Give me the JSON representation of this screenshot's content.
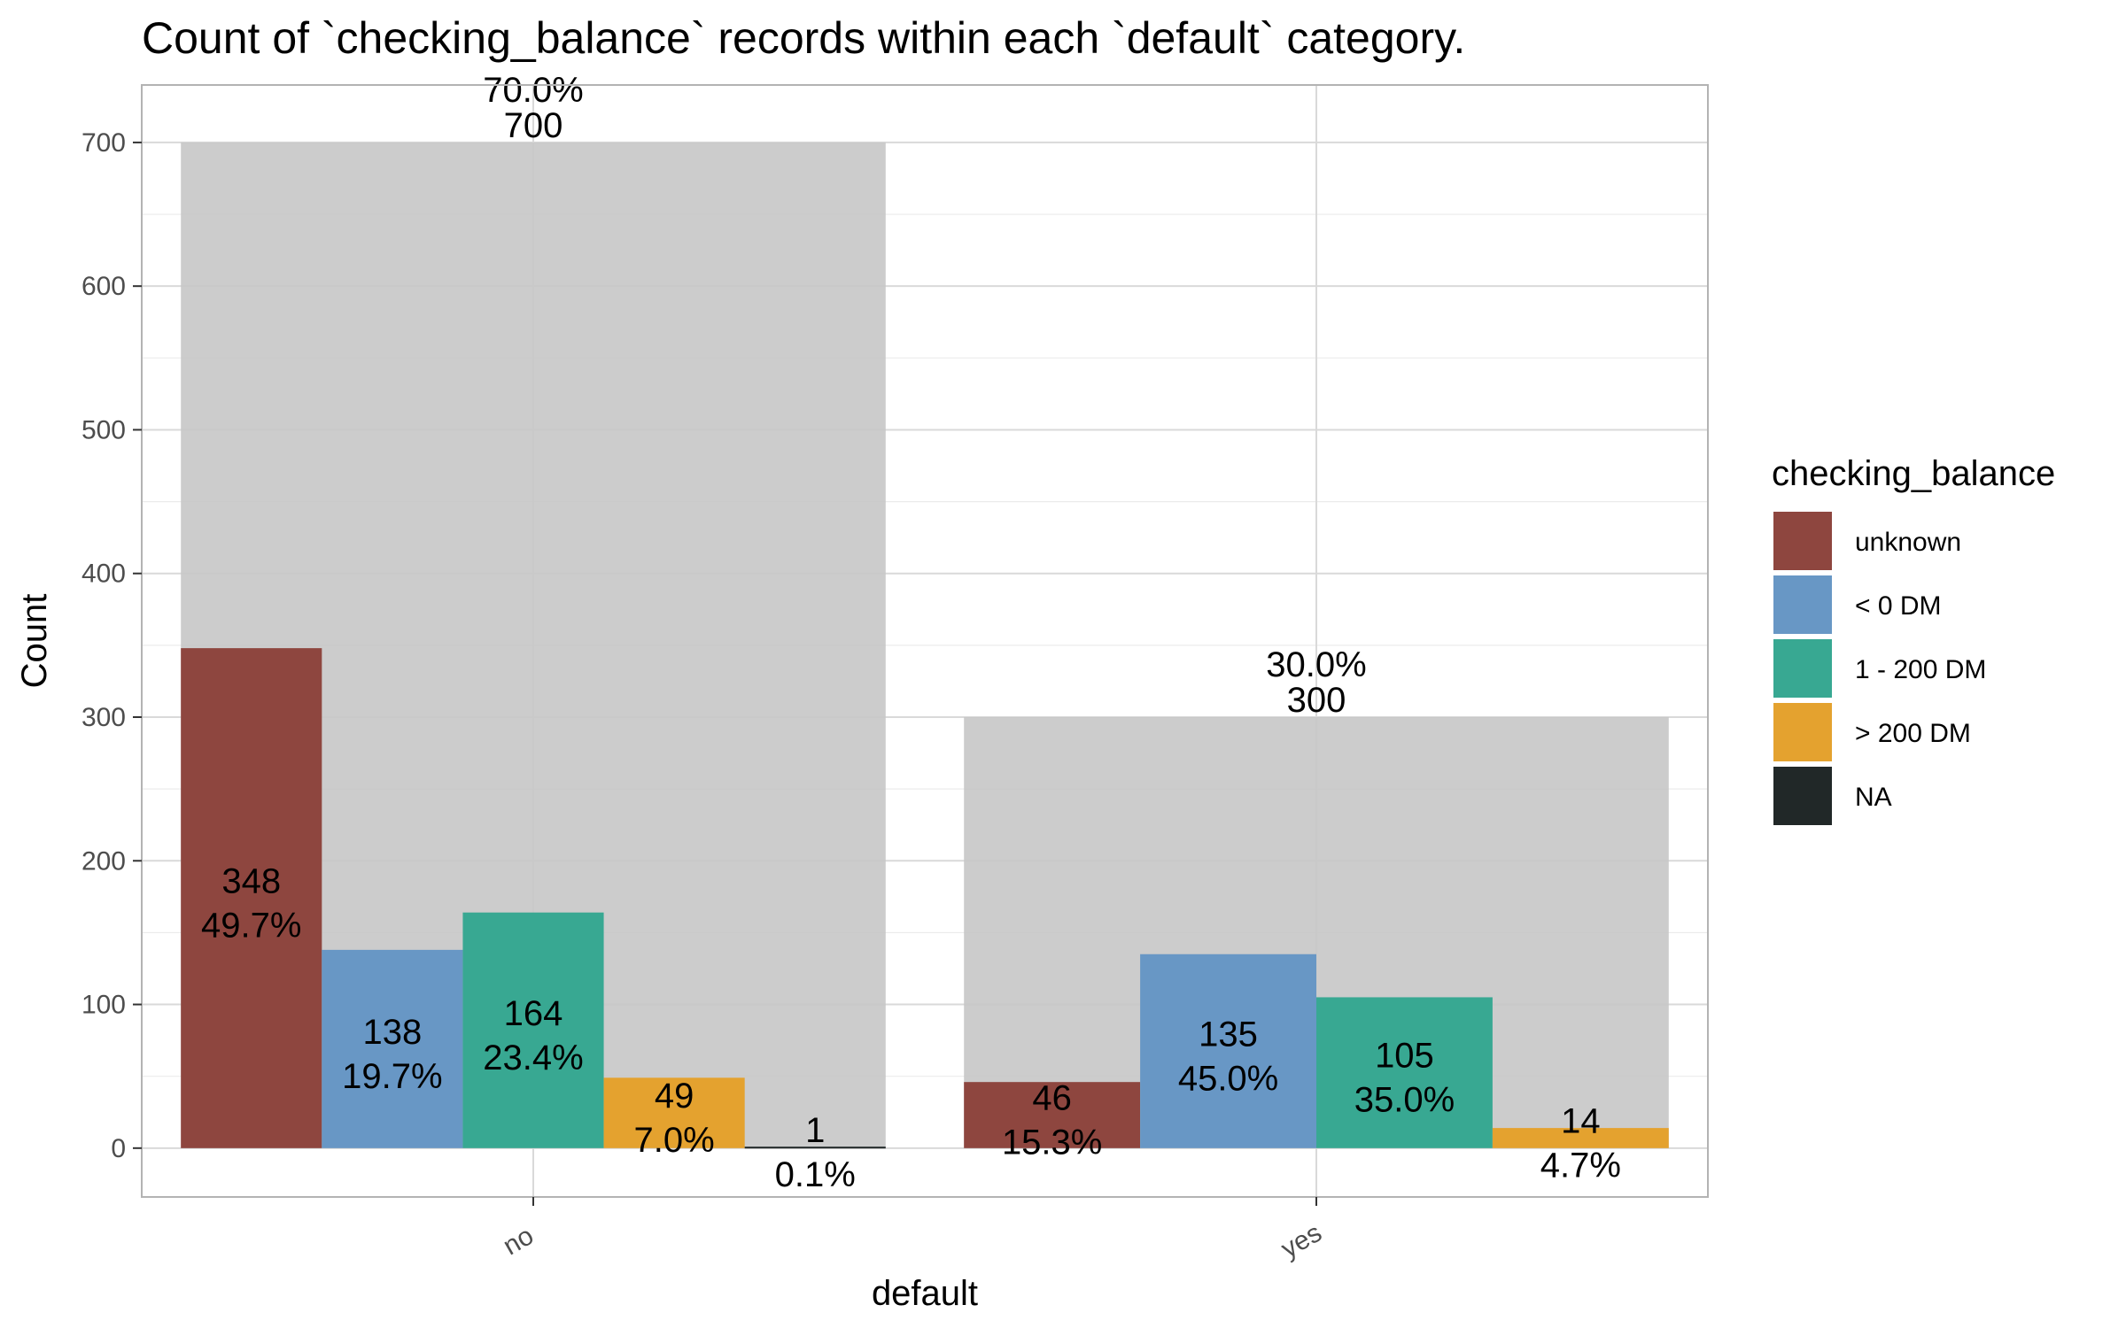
{
  "chart_data": {
    "type": "bar",
    "title": "Count of `checking_balance` records within each `default` category.",
    "xlabel": "default",
    "ylabel": "Count",
    "ylim": [
      -34,
      740
    ],
    "y_ticks": [
      0,
      100,
      200,
      300,
      400,
      500,
      600,
      700
    ],
    "categories": [
      "no",
      "yes"
    ],
    "grid": true,
    "legend_position": "right",
    "legend_title": "checking_balance",
    "totals": [
      {
        "category": "no",
        "value": 700,
        "value_label": "700",
        "pct_label": "70.0%"
      },
      {
        "category": "yes",
        "value": 300,
        "value_label": "300",
        "pct_label": "30.0%"
      }
    ],
    "series": [
      {
        "name": "unknown",
        "color": "#8E463F",
        "values": [
          348,
          46
        ],
        "value_labels": [
          "348",
          "46"
        ],
        "pct_labels": [
          "49.7%",
          "15.3%"
        ]
      },
      {
        "name": "< 0 DM",
        "color": "#6897C5",
        "values": [
          138,
          135
        ],
        "value_labels": [
          "138",
          "135"
        ],
        "pct_labels": [
          "19.7%",
          "45.0%"
        ]
      },
      {
        "name": "1 - 200 DM",
        "color": "#38A892",
        "values": [
          164,
          105
        ],
        "value_labels": [
          "164",
          "105"
        ],
        "pct_labels": [
          "23.4%",
          "35.0%"
        ]
      },
      {
        "name": "> 200 DM",
        "color": "#E4A22F",
        "values": [
          49,
          14
        ],
        "value_labels": [
          "49",
          "14"
        ],
        "pct_labels": [
          "7.0%",
          "4.7%"
        ]
      },
      {
        "name": "NA",
        "color": "#212828",
        "values": [
          1,
          0
        ],
        "value_labels": [
          "1",
          ""
        ],
        "pct_labels": [
          "0.1%",
          ""
        ]
      }
    ],
    "total_bar_color": "#C7C7C7"
  }
}
